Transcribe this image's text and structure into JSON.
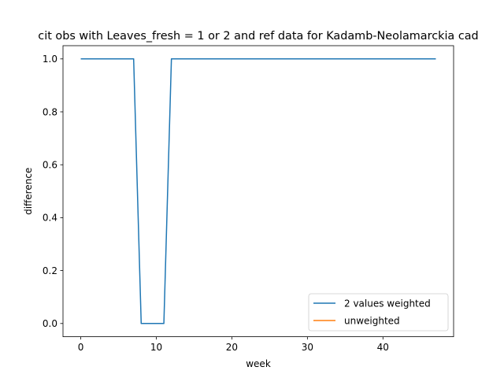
{
  "chart_data": {
    "type": "line",
    "title": "cit obs with Leaves_fresh = 1 or 2 and ref data for Kadamb-Neolamarckia cad",
    "xlabel": "week",
    "ylabel": "difference",
    "xlim": [
      -2.35,
      49.35
    ],
    "ylim": [
      -0.05,
      1.05
    ],
    "xticks": [
      0,
      10,
      20,
      30,
      40
    ],
    "yticks": [
      0.0,
      0.2,
      0.4,
      0.6,
      0.8,
      1.0
    ],
    "xtick_labels": [
      "0",
      "10",
      "20",
      "30",
      "40"
    ],
    "ytick_labels": [
      "0.0",
      "0.2",
      "0.4",
      "0.6",
      "0.8",
      "1.0"
    ],
    "legend_position": "lower right",
    "grid": false,
    "series": [
      {
        "name": "2 values weighted",
        "color": "#1f77b4",
        "x": [
          0,
          1,
          2,
          3,
          4,
          5,
          6,
          7,
          8,
          9,
          10,
          11,
          12,
          13,
          14,
          15,
          16,
          17,
          18,
          19,
          20,
          21,
          22,
          23,
          24,
          25,
          26,
          27,
          28,
          29,
          30,
          31,
          32,
          33,
          34,
          35,
          36,
          37,
          38,
          39,
          40,
          41,
          42,
          43,
          44,
          45,
          46,
          47
        ],
        "y": [
          1,
          1,
          1,
          1,
          1,
          1,
          1,
          1,
          0,
          0,
          0,
          0,
          1,
          1,
          1,
          1,
          1,
          1,
          1,
          1,
          1,
          1,
          1,
          1,
          1,
          1,
          1,
          1,
          1,
          1,
          1,
          1,
          1,
          1,
          1,
          1,
          1,
          1,
          1,
          1,
          1,
          1,
          1,
          1,
          1,
          1,
          1,
          1
        ]
      },
      {
        "name": "unweighted",
        "color": "#ff7f0e",
        "x": [],
        "y": []
      }
    ]
  }
}
